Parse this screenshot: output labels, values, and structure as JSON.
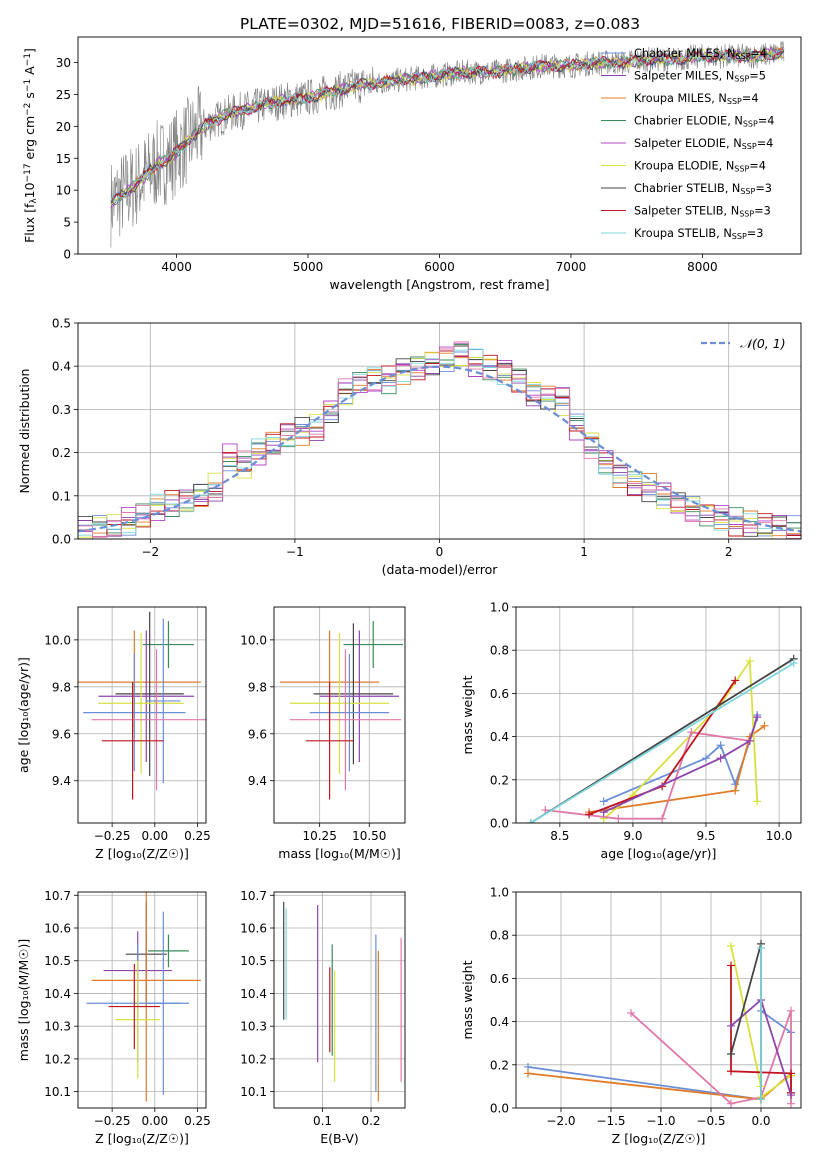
{
  "title": "PLATE=0302, MJD=51616, FIBERID=0083, z=0.083",
  "chart_data": [
    {
      "id": "spectrum",
      "type": "line",
      "xlabel": "wavelength [Angstrom, rest frame]",
      "ylabel": "Flux [f",
      "ylabel_parts": [
        "Flux [f",
        "λ",
        "10",
        "−17",
        " erg cm",
        "−2",
        " s",
        "−1",
        " A",
        "−1",
        "]"
      ],
      "xlim": [
        3250,
        8750
      ],
      "ylim": [
        0,
        34
      ],
      "xticks": [
        4000,
        5000,
        6000,
        7000,
        8000
      ],
      "yticks": [
        0,
        5,
        10,
        15,
        20,
        25,
        30
      ],
      "legend_position": "upper-right",
      "legend": [
        {
          "name": "Chabrier MILES",
          "nssp": "4",
          "color": "#6a8fd8"
        },
        {
          "name": "Salpeter MILES",
          "nssp": "5",
          "color": "#8e44ad"
        },
        {
          "name": "Kroupa MILES",
          "nssp": "4",
          "color": "#e07b28"
        },
        {
          "name": "Chabrier ELODIE",
          "nssp": "4",
          "color": "#3a8a5a"
        },
        {
          "name": "Salpeter ELODIE",
          "nssp": "4",
          "color": "#b044c8"
        },
        {
          "name": "Kroupa ELODIE",
          "nssp": "4",
          "color": "#d8e040"
        },
        {
          "name": "Chabrier STELIB",
          "nssp": "3",
          "color": "#444444"
        },
        {
          "name": "Salpeter STELIB",
          "nssp": "3",
          "color": "#c0141e"
        },
        {
          "name": "Kroupa STELIB",
          "nssp": "3",
          "color": "#7ed6dc"
        }
      ],
      "data_wavelength": [
        3500,
        3700,
        3850,
        3950,
        4050,
        4200,
        4400,
        4600,
        4800,
        5000,
        5200,
        5400,
        5600,
        5800,
        6000,
        6200,
        6400,
        6600,
        6800,
        7000,
        7200,
        7400,
        7600,
        7800,
        8000,
        8200,
        8400,
        8600
      ],
      "data_flux": [
        8,
        11,
        14,
        15,
        17,
        20,
        22,
        23,
        24,
        24.5,
        25.5,
        26.5,
        27,
        27.5,
        28,
        28.5,
        28.5,
        29,
        29.5,
        29.5,
        30,
        30,
        30.5,
        30.5,
        31,
        31,
        31,
        31.5
      ]
    },
    {
      "id": "residuals",
      "type": "histogram",
      "xlabel": "(data-model)/error",
      "ylabel": "Normed distribution",
      "xlim": [
        -2.5,
        2.5
      ],
      "ylim": [
        0,
        0.5
      ],
      "xticks": [
        -2,
        -1,
        0,
        1,
        2
      ],
      "xtick_labels": [
        "−2",
        "−1",
        "0",
        "1",
        "2"
      ],
      "yticks": [
        0,
        0.1,
        0.2,
        0.3,
        0.4,
        0.5
      ],
      "ytick_labels": [
        "0.0",
        "0.1",
        "0.2",
        "0.3",
        "0.4",
        "0.5"
      ],
      "legend": [
        {
          "name": "𝒩(0, 1)",
          "color": "#6a8fd8",
          "style": "dashed"
        }
      ],
      "bin_centers": [
        -2.45,
        -2.35,
        -2.25,
        -2.15,
        -2.05,
        -1.95,
        -1.85,
        -1.75,
        -1.65,
        -1.55,
        -1.45,
        -1.35,
        -1.25,
        -1.15,
        -1.05,
        -0.95,
        -0.85,
        -0.75,
        -0.65,
        -0.55,
        -0.45,
        -0.35,
        -0.25,
        -0.15,
        -0.05,
        0.05,
        0.15,
        0.25,
        0.35,
        0.45,
        0.55,
        0.65,
        0.75,
        0.85,
        0.95,
        1.05,
        1.15,
        1.25,
        1.35,
        1.45,
        1.55,
        1.65,
        1.75,
        1.85,
        1.95,
        2.05,
        2.15,
        2.25,
        2.35,
        2.45
      ],
      "counts": [
        0.02,
        0.025,
        0.03,
        0.04,
        0.05,
        0.07,
        0.08,
        0.085,
        0.1,
        0.12,
        0.19,
        0.17,
        0.2,
        0.22,
        0.24,
        0.25,
        0.26,
        0.3,
        0.34,
        0.36,
        0.37,
        0.37,
        0.39,
        0.4,
        0.41,
        0.42,
        0.43,
        0.41,
        0.4,
        0.39,
        0.37,
        0.34,
        0.33,
        0.32,
        0.26,
        0.22,
        0.18,
        0.15,
        0.13,
        0.12,
        0.1,
        0.08,
        0.07,
        0.06,
        0.05,
        0.04,
        0.035,
        0.03,
        0.025,
        0.02
      ]
    },
    {
      "id": "age-vs-Z",
      "type": "errorbar",
      "xlabel": "Z [log₁₀(Z/Z☉)]",
      "ylabel": "age  [log₁₀(age/yr)]",
      "xlim": [
        -0.45,
        0.3
      ],
      "ylim": [
        9.22,
        10.14
      ],
      "xticks": [
        -0.25,
        0,
        0.25
      ],
      "xtick_labels": [
        "−0.25",
        "0.00",
        "0.25"
      ],
      "yticks": [
        9.4,
        9.6,
        9.8,
        10.0
      ],
      "ytick_labels": [
        "9.4",
        "9.6",
        "9.8",
        "10.0"
      ],
      "points": [
        {
          "x": -0.12,
          "xerr": 0.39,
          "y": 9.82,
          "yerr": 0.22,
          "color": "#e07b28"
        },
        {
          "x": 0.08,
          "xerr": 0.15,
          "y": 9.98,
          "yerr": 0.1,
          "color": "#3a8a5a"
        },
        {
          "x": -0.03,
          "xerr": 0.2,
          "y": 9.77,
          "yerr": 0.35,
          "color": "#444444"
        },
        {
          "x": -0.05,
          "xerr": 0.28,
          "y": 9.76,
          "yerr": 0.28,
          "color": "#8e44ad"
        },
        {
          "x": -0.08,
          "xerr": 0.25,
          "y": 9.73,
          "yerr": 0.3,
          "color": "#d8e040"
        },
        {
          "x": 0.05,
          "xerr": 0.1,
          "y": 9.74,
          "yerr": 0.35,
          "color": "#6a8fd8"
        },
        {
          "x": -0.12,
          "xerr": 0.3,
          "y": 9.69,
          "yerr": 0.25,
          "color": "#6a8fd8"
        },
        {
          "x": 0.01,
          "xerr": 0.38,
          "y": 9.66,
          "yerr": 0.3,
          "color": "#e078a8"
        },
        {
          "x": -0.13,
          "xerr": 0.18,
          "y": 9.57,
          "yerr": 0.25,
          "color": "#c0141e"
        }
      ]
    },
    {
      "id": "age-vs-mass",
      "type": "errorbar",
      "xlabel": "mass [log₁₀(M/M☉)]",
      "ylabel": "",
      "xlim": [
        10.02,
        10.68
      ],
      "ylim": [
        9.22,
        10.14
      ],
      "xticks": [
        10.25,
        10.5
      ],
      "xtick_labels": [
        "10.25",
        "10.50"
      ],
      "yticks": [
        9.4,
        9.6,
        9.8,
        10.0
      ],
      "ytick_labels": [
        "9.4",
        "9.6",
        "9.8",
        "10.0"
      ],
      "points": [
        {
          "x": 10.3,
          "xerr": 0.25,
          "y": 9.82,
          "yerr": 0.22,
          "color": "#e07b28"
        },
        {
          "x": 10.52,
          "xerr": 0.15,
          "y": 9.98,
          "yerr": 0.1,
          "color": "#3a8a5a"
        },
        {
          "x": 10.42,
          "xerr": 0.2,
          "y": 9.77,
          "yerr": 0.3,
          "color": "#444444"
        },
        {
          "x": 10.45,
          "xerr": 0.2,
          "y": 9.76,
          "yerr": 0.28,
          "color": "#8e44ad"
        },
        {
          "x": 10.35,
          "xerr": 0.25,
          "y": 9.73,
          "yerr": 0.3,
          "color": "#d8e040"
        },
        {
          "x": 10.4,
          "xerr": 0.2,
          "y": 9.69,
          "yerr": 0.25,
          "color": "#6a8fd8"
        },
        {
          "x": 10.38,
          "xerr": 0.28,
          "y": 9.66,
          "yerr": 0.3,
          "color": "#e078a8"
        },
        {
          "x": 10.3,
          "xerr": 0.12,
          "y": 9.57,
          "yerr": 0.25,
          "color": "#c0141e"
        }
      ]
    },
    {
      "id": "massweight-vs-age",
      "type": "line",
      "xlabel": "age  [log₁₀(age/yr)]",
      "ylabel": "mass weight",
      "xlim": [
        8.2,
        10.15
      ],
      "ylim": [
        0,
        1
      ],
      "xticks": [
        8.5,
        9.0,
        9.5,
        10.0
      ],
      "xtick_labels": [
        "8.5",
        "9.0",
        "9.5",
        "10.0"
      ],
      "yticks": [
        0,
        0.2,
        0.4,
        0.6,
        0.8,
        1.0
      ],
      "ytick_labels": [
        "0.0",
        "0.2",
        "0.4",
        "0.6",
        "0.8",
        "1.0"
      ],
      "series": [
        {
          "color": "#6a8fd8",
          "x": [
            8.8,
            9.5,
            9.6,
            9.7,
            9.8,
            9.85
          ],
          "y": [
            0.1,
            0.3,
            0.36,
            0.18,
            0.38,
            0.5
          ]
        },
        {
          "color": "#e07b28",
          "x": [
            8.7,
            9.7,
            9.8,
            9.9
          ],
          "y": [
            0.05,
            0.15,
            0.4,
            0.45
          ]
        },
        {
          "color": "#d8e040",
          "x": [
            8.8,
            9.0,
            9.6,
            9.8,
            9.85
          ],
          "y": [
            0.02,
            0.13,
            0.55,
            0.75,
            0.1
          ]
        },
        {
          "color": "#e078a8",
          "x": [
            8.4,
            8.9,
            9.2,
            9.4,
            9.8
          ],
          "y": [
            0.06,
            0.02,
            0.02,
            0.42,
            0.38
          ]
        },
        {
          "color": "#c0141e",
          "x": [
            8.7,
            9.2,
            9.7
          ],
          "y": [
            0.04,
            0.17,
            0.66
          ]
        },
        {
          "color": "#8e44ad",
          "x": [
            8.8,
            9.6,
            9.8,
            9.85
          ],
          "y": [
            0.05,
            0.3,
            0.38,
            0.49
          ]
        },
        {
          "color": "#444444",
          "x": [
            8.3,
            10.1
          ],
          "y": [
            0.0,
            0.76
          ]
        },
        {
          "color": "#7ed6dc",
          "x": [
            8.3,
            10.1
          ],
          "y": [
            0.0,
            0.74
          ]
        }
      ]
    },
    {
      "id": "mass-vs-Z",
      "type": "errorbar",
      "xlabel": "Z [log₁₀(Z/Z☉)]",
      "ylabel": "mass [log₁₀(M/M☉)]",
      "xlim": [
        -0.45,
        0.3
      ],
      "ylim": [
        10.05,
        10.71
      ],
      "xticks": [
        -0.25,
        0,
        0.25
      ],
      "xtick_labels": [
        "−0.25",
        "0.00",
        "0.25"
      ],
      "yticks": [
        10.1,
        10.2,
        10.3,
        10.4,
        10.5,
        10.6,
        10.7
      ],
      "ytick_labels": [
        "10.1",
        "10.2",
        "10.3",
        "10.4",
        "10.5",
        "10.6",
        "10.7"
      ],
      "points": [
        {
          "x": -0.05,
          "xerr": 0.12,
          "y": 10.52,
          "yerr": 0.16,
          "color": "#444444"
        },
        {
          "x": 0.08,
          "xerr": 0.12,
          "y": 10.53,
          "yerr": 0.05,
          "color": "#3a8a5a"
        },
        {
          "x": -0.1,
          "xerr": 0.2,
          "y": 10.47,
          "yerr": 0.12,
          "color": "#8e44ad"
        },
        {
          "x": -0.05,
          "xerr": 0.32,
          "y": 10.44,
          "yerr": 0.37,
          "color": "#e07b28"
        },
        {
          "x": -0.1,
          "xerr": 0.3,
          "y": 10.37,
          "yerr": 0.18,
          "color": "#6a8fd8"
        },
        {
          "x": 0.05,
          "xerr": 0.1,
          "y": 10.37,
          "yerr": 0.28,
          "color": "#6a8fd8"
        },
        {
          "x": -0.1,
          "xerr": 0.13,
          "y": 10.32,
          "yerr": 0.18,
          "color": "#d8e040"
        },
        {
          "x": -0.12,
          "xerr": 0.15,
          "y": 10.36,
          "yerr": 0.13,
          "color": "#c0141e"
        }
      ]
    },
    {
      "id": "mass-vs-EBV",
      "type": "errorbar",
      "xlabel": "E(B-V)",
      "ylabel": "",
      "xlim": [
        0.0,
        0.27
      ],
      "ylim": [
        10.05,
        10.71
      ],
      "xticks": [
        0.1,
        0.2
      ],
      "xtick_labels": [
        "0.1",
        "0.2"
      ],
      "yticks": [
        10.1,
        10.2,
        10.3,
        10.4,
        10.5,
        10.6,
        10.7
      ],
      "ytick_labels": [
        "10.1",
        "10.2",
        "10.3",
        "10.4",
        "10.5",
        "10.6",
        "10.7"
      ],
      "points": [
        {
          "x": 0.02,
          "y": 10.5,
          "yerr": 0.18,
          "color": "#444444"
        },
        {
          "x": 0.025,
          "y": 10.49,
          "yerr": 0.17,
          "color": "#7ed6dc"
        },
        {
          "x": 0.09,
          "y": 10.43,
          "yerr": 0.24,
          "color": "#8e44ad"
        },
        {
          "x": 0.12,
          "y": 10.38,
          "yerr": 0.17,
          "color": "#3a8a5a"
        },
        {
          "x": 0.125,
          "y": 10.3,
          "yerr": 0.17,
          "color": "#d8e040"
        },
        {
          "x": 0.115,
          "y": 10.35,
          "yerr": 0.13,
          "color": "#c0141e"
        },
        {
          "x": 0.215,
          "y": 10.3,
          "yerr": 0.23,
          "color": "#e07b28"
        },
        {
          "x": 0.21,
          "y": 10.34,
          "yerr": 0.24,
          "color": "#6a8fd8"
        },
        {
          "x": 0.262,
          "y": 10.35,
          "yerr": 0.22,
          "color": "#e078a8"
        }
      ]
    },
    {
      "id": "massweight-vs-Z",
      "type": "line",
      "xlabel": "Z [log₁₀(Z/Z☉)]",
      "ylabel": "mass weight",
      "xlim": [
        -2.45,
        0.4
      ],
      "ylim": [
        0,
        1
      ],
      "xticks": [
        -2.0,
        -1.5,
        -1.0,
        -0.5,
        0.0
      ],
      "xtick_labels": [
        "−2.0",
        "−1.5",
        "−1.0",
        "−0.5",
        "0.0"
      ],
      "yticks": [
        0,
        0.2,
        0.4,
        0.6,
        0.8,
        1.0
      ],
      "ytick_labels": [
        "0.0",
        "0.2",
        "0.4",
        "0.6",
        "0.8",
        "1.0"
      ],
      "series": [
        {
          "color": "#6a8fd8",
          "x": [
            -2.33,
            0.0,
            0.0,
            0.3,
            0.3
          ],
          "y": [
            0.19,
            0.04,
            0.45,
            0.35,
            0.07
          ]
        },
        {
          "color": "#e07b28",
          "x": [
            -2.33,
            0.0,
            0.3
          ],
          "y": [
            0.16,
            0.04,
            0.16
          ]
        },
        {
          "color": "#e078a8",
          "x": [
            -1.3,
            -0.3,
            0.0,
            0.3,
            0.3
          ],
          "y": [
            0.44,
            0.02,
            0.05,
            0.45,
            0.02
          ]
        },
        {
          "color": "#d8e040",
          "x": [
            -0.3,
            0.0,
            0.0,
            0.3
          ],
          "y": [
            0.75,
            0.1,
            0.05,
            0.15
          ]
        },
        {
          "color": "#c0141e",
          "x": [
            -0.3,
            -0.3,
            0.3,
            0.3
          ],
          "y": [
            0.66,
            0.17,
            0.16,
            0.07
          ]
        },
        {
          "color": "#8e44ad",
          "x": [
            -0.3,
            0.0,
            0.3
          ],
          "y": [
            0.38,
            0.5,
            0.06
          ]
        },
        {
          "color": "#444444",
          "x": [
            -0.3,
            0.0,
            0.0
          ],
          "y": [
            0.25,
            0.76,
            0.04
          ]
        },
        {
          "color": "#7ed6dc",
          "x": [
            0.0,
            0.0
          ],
          "y": [
            0.74,
            0.04
          ]
        }
      ]
    }
  ]
}
